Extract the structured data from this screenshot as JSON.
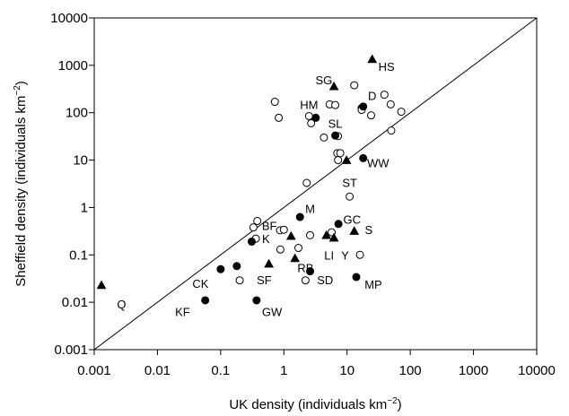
{
  "chart_data": {
    "type": "scatter",
    "xlabel_prefix": "UK density (individuals km",
    "ylabel_prefix": "Sheffield density (individuals km",
    "label_sup": "−2",
    "label_suffix": ")",
    "xlim": [
      0.001,
      10000
    ],
    "ylim": [
      0.001,
      10000
    ],
    "x_scale": "log",
    "y_scale": "log",
    "x_tick_values": [
      0.001,
      0.01,
      0.1,
      1,
      10,
      100,
      1000,
      10000
    ],
    "x_tick_labels": [
      "0.001",
      "0.01",
      "0.1",
      "1",
      "10",
      "100",
      "1000",
      "10000"
    ],
    "y_tick_values": [
      0.001,
      0.01,
      0.1,
      1,
      10,
      100,
      1000,
      10000
    ],
    "y_tick_labels": [
      "0.001",
      "0.01",
      "0.1",
      "1",
      "10",
      "100",
      "1000",
      "10000"
    ],
    "reference_line": [
      [
        0.001,
        0.001
      ],
      [
        10000,
        10000
      ]
    ],
    "series": [
      {
        "marker": "open-circle",
        "points": [
          [
            0.72,
            170
          ],
          [
            0.83,
            78
          ],
          [
            2.5,
            85
          ],
          [
            2.7,
            60
          ],
          [
            5.3,
            150
          ],
          [
            6.5,
            145
          ],
          [
            13,
            380
          ],
          [
            4.3,
            30
          ],
          [
            7.2,
            32
          ],
          [
            7.0,
            14
          ],
          [
            7.8,
            14
          ],
          [
            7.2,
            10
          ],
          [
            17,
            125
          ],
          [
            17,
            115
          ],
          [
            24,
            88
          ],
          [
            39,
            240
          ],
          [
            49,
            150
          ],
          [
            72,
            105
          ],
          [
            50,
            42
          ],
          [
            2.3,
            3.3
          ],
          [
            11,
            1.7
          ],
          [
            0.38,
            0.52
          ],
          [
            0.33,
            0.38
          ],
          [
            0.36,
            0.22
          ],
          [
            0.87,
            0.33
          ],
          [
            1.0,
            0.34
          ],
          [
            2.6,
            0.26
          ],
          [
            5.7,
            0.3
          ],
          [
            1.7,
            0.14
          ],
          [
            0.88,
            0.13
          ],
          [
            0.2,
            0.029
          ],
          [
            2.2,
            0.029
          ],
          [
            16,
            0.1
          ]
        ]
      },
      {
        "marker": "filled-circle",
        "points": [
          [
            3.2,
            78
          ],
          [
            6.5,
            33
          ],
          [
            18,
            135
          ],
          [
            18,
            11
          ],
          [
            1.8,
            0.63
          ],
          [
            7.3,
            0.45
          ],
          [
            0.31,
            0.19
          ],
          [
            0.1,
            0.05
          ],
          [
            0.18,
            0.058
          ],
          [
            2.6,
            0.045
          ],
          [
            14,
            0.034
          ],
          [
            0.057,
            0.011
          ],
          [
            0.37,
            0.011
          ]
        ]
      },
      {
        "marker": "filled-triangle",
        "points": [
          [
            25,
            1350
          ],
          [
            6.2,
            360
          ],
          [
            9.8,
            10
          ],
          [
            13,
            0.32
          ],
          [
            4.7,
            0.26
          ],
          [
            6.2,
            0.23
          ],
          [
            1.3,
            0.25
          ],
          [
            1.5,
            0.085
          ],
          [
            0.58,
            0.065
          ],
          [
            0.0013,
            0.023
          ]
        ]
      }
    ],
    "annotations": [
      {
        "text": "HS",
        "x": 42,
        "y": 950
      },
      {
        "text": "SG",
        "x": 4.3,
        "y": 500
      },
      {
        "text": "D",
        "x": 25,
        "y": 230
      },
      {
        "text": "HM",
        "x": 2.5,
        "y": 150
      },
      {
        "text": "SL",
        "x": 6.5,
        "y": 60
      },
      {
        "text": "WW",
        "x": 31,
        "y": 8.8
      },
      {
        "text": "ST",
        "x": 11,
        "y": 3.4
      },
      {
        "text": "M",
        "x": 2.6,
        "y": 0.95
      },
      {
        "text": "GC",
        "x": 12,
        "y": 0.57
      },
      {
        "text": "BF",
        "x": 0.59,
        "y": 0.42
      },
      {
        "text": "S",
        "x": 22,
        "y": 0.34
      },
      {
        "text": "K",
        "x": 0.52,
        "y": 0.22
      },
      {
        "text": "LI",
        "x": 5.2,
        "y": 0.1
      },
      {
        "text": "Y",
        "x": 9.3,
        "y": 0.1
      },
      {
        "text": "RB",
        "x": 2.2,
        "y": 0.054
      },
      {
        "text": "CK",
        "x": 0.048,
        "y": 0.025
      },
      {
        "text": "SF",
        "x": 0.49,
        "y": 0.03
      },
      {
        "text": "SD",
        "x": 4.5,
        "y": 0.03
      },
      {
        "text": "MP",
        "x": 26,
        "y": 0.024
      },
      {
        "text": "Q",
        "x": 0.0027,
        "y": 0.0093
      },
      {
        "text": "KF",
        "x": 0.025,
        "y": 0.0064
      },
      {
        "text": "GW",
        "x": 0.65,
        "y": 0.0064
      }
    ]
  }
}
